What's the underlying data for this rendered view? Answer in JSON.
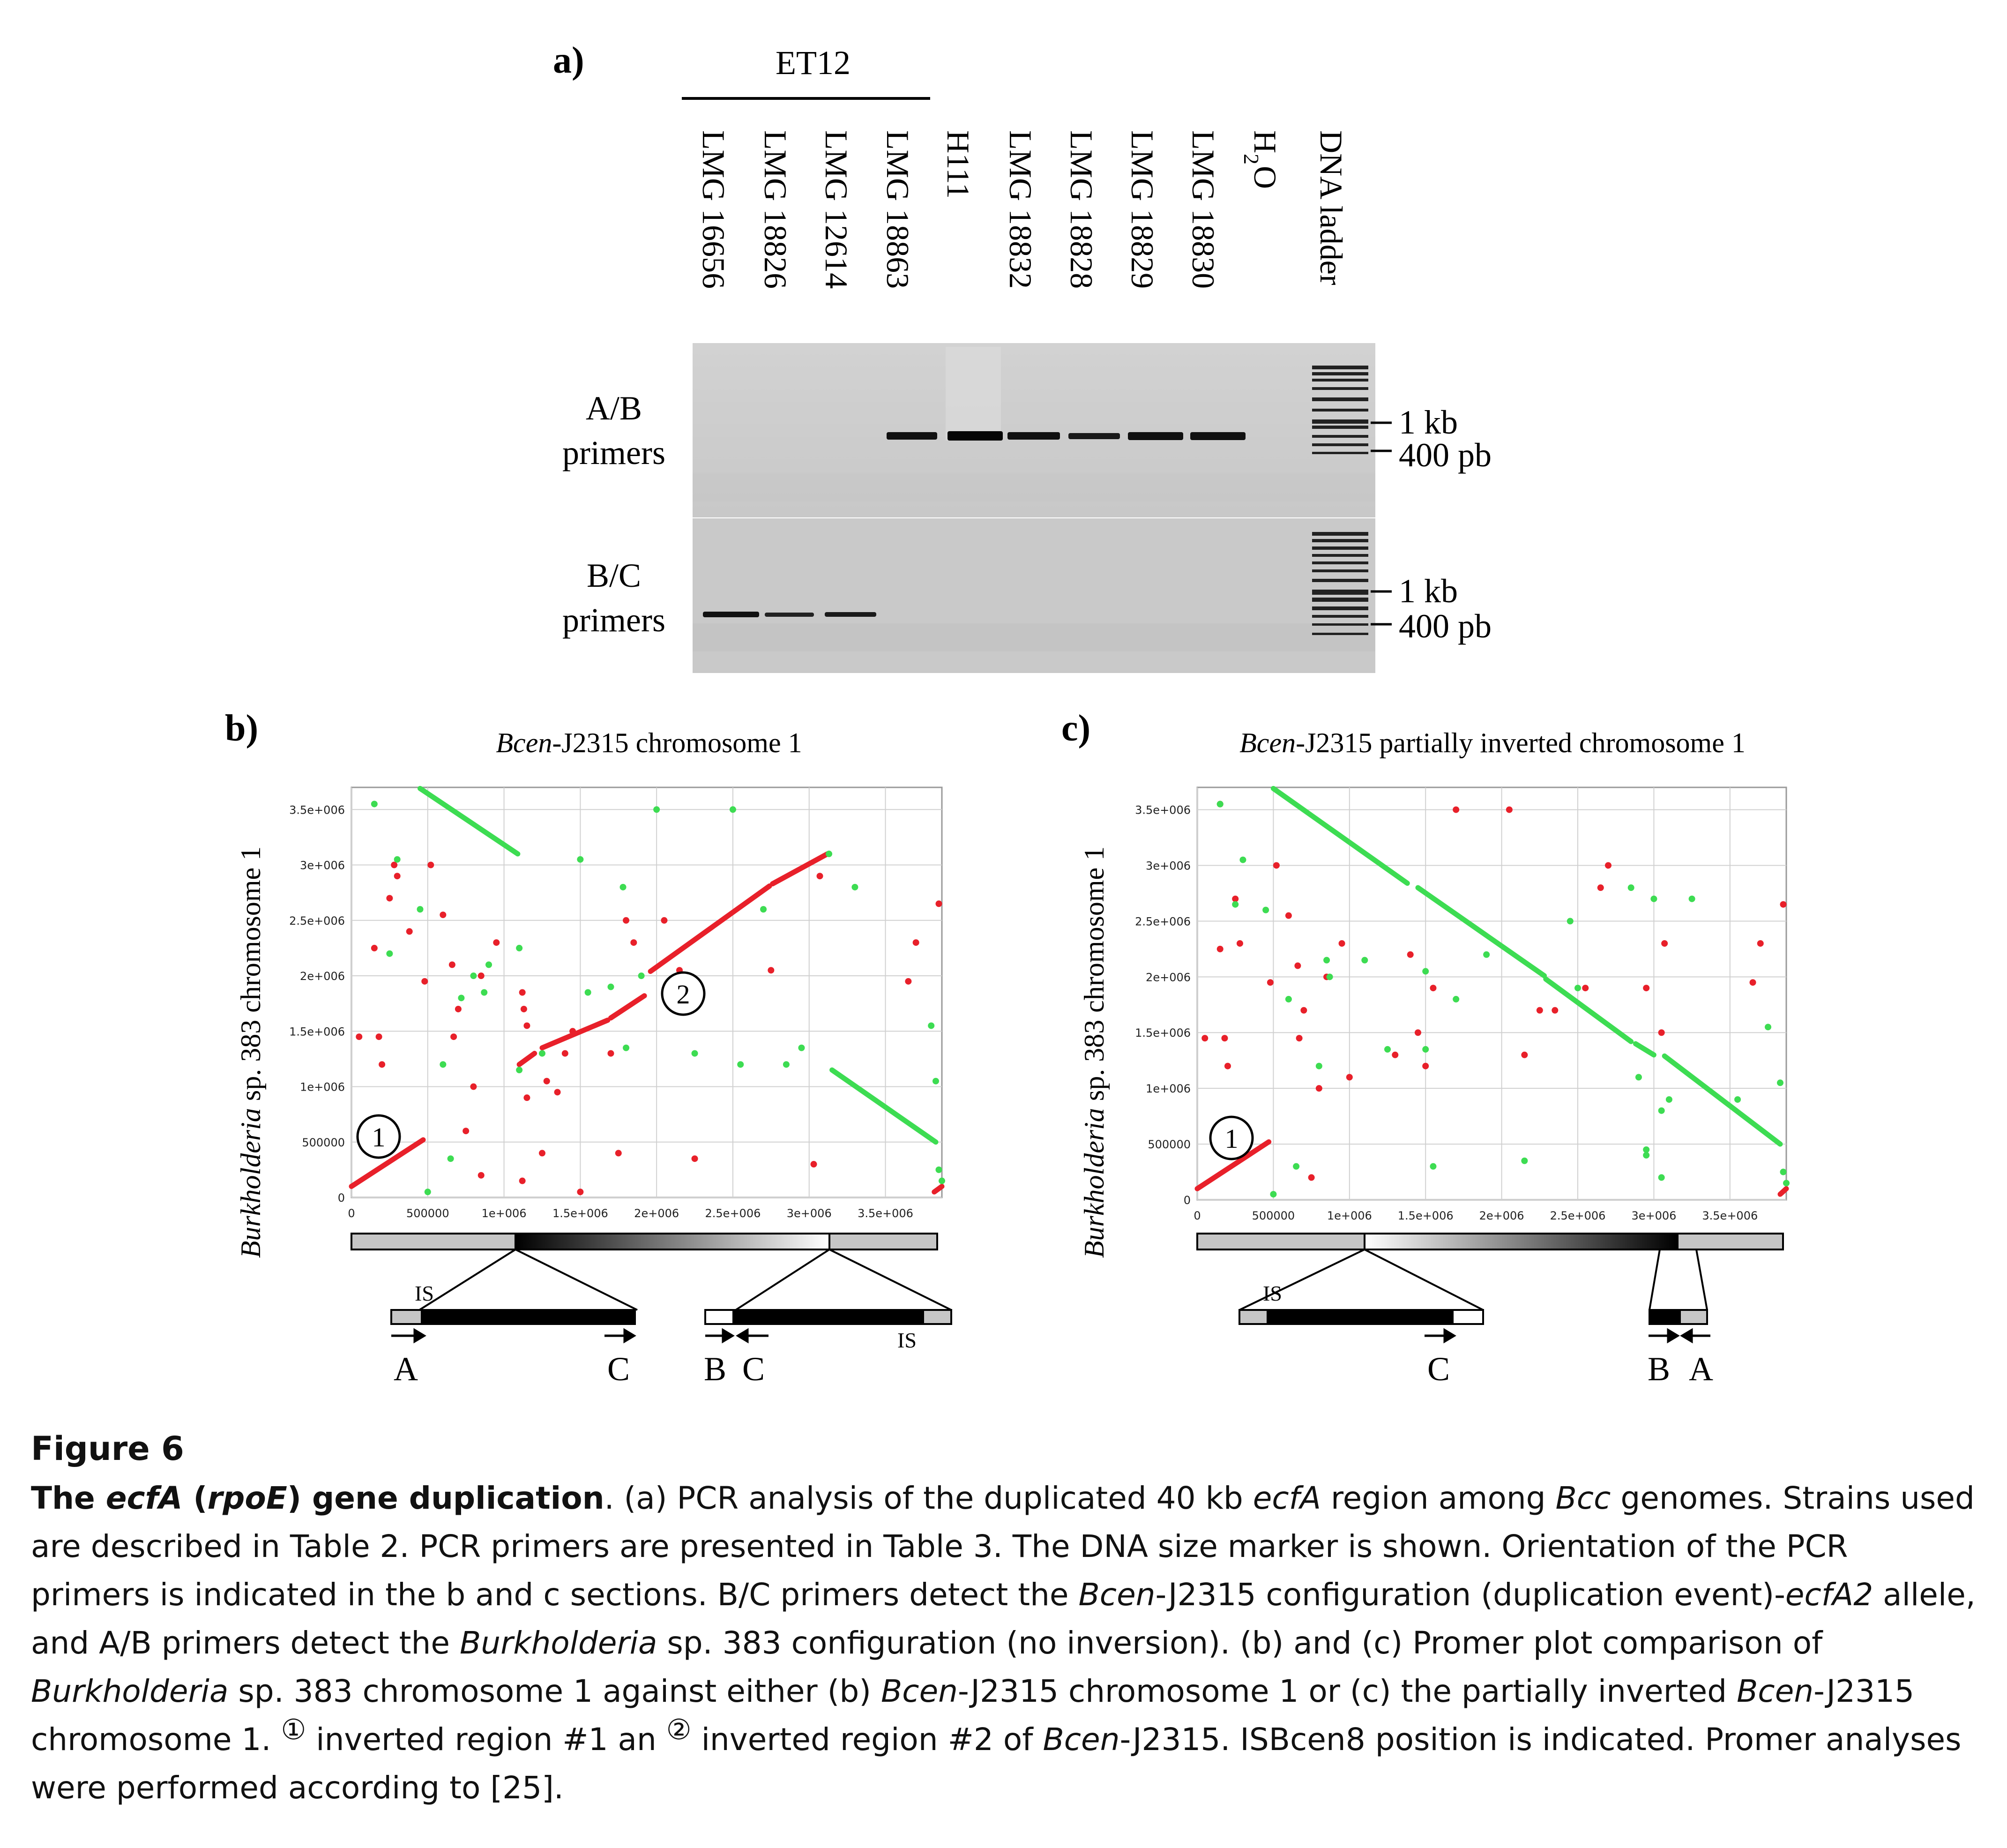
{
  "panel_a": {
    "label": "a)",
    "group_label": "ET12",
    "lanes": [
      "LMG 16656",
      "LMG 18826",
      "LMG 12614",
      "LMG 18863",
      "H111",
      "LMG 18832",
      "LMG 18828",
      "LMG 18829",
      "LMG 18830",
      "H",
      "DNA ladder"
    ],
    "h2o_sub": "2",
    "h2o_O": "O",
    "row1_label_1": "A/B",
    "row1_label_2": "primers",
    "row2_label_1": "B/C",
    "row2_label_2": "primers",
    "marker_1kb": "1 kb",
    "marker_400": "400 pb",
    "row1_bands": [
      0,
      0,
      0,
      1,
      1,
      1,
      1,
      1,
      1,
      0
    ],
    "row2_bands": [
      1,
      1,
      1,
      0,
      0,
      0,
      0,
      0,
      0,
      0
    ]
  },
  "panel_b": {
    "label": "b)",
    "title_italic": "Bcen",
    "title_rest": "-J2315 chromosome 1",
    "ylabel_italic": "Burkholderia",
    "ylabel_rest": " sp. 383 chromosome 1",
    "marker_1": "1",
    "marker_2": "2",
    "is_left": "IS",
    "is_right": "IS",
    "arrow_labels": [
      "A",
      "C",
      "B",
      "C"
    ]
  },
  "panel_c": {
    "label": "c)",
    "title_italic": "Bcen",
    "title_rest": "-J2315 partially inverted chromosome 1",
    "ylabel_italic": "Burkholderia",
    "ylabel_rest": " sp. 383 chromosome 1",
    "marker_1": "1",
    "is_left": "IS",
    "arrow_labels": [
      "C",
      "B",
      "A"
    ]
  },
  "chart_data": [
    {
      "type": "scatter",
      "title": "Bcen-J2315 chromosome 1",
      "ylabel": "Burkholderia sp. 383 chromosome 1",
      "xlim": [
        0,
        3870000
      ],
      "ylim": [
        0,
        3700000
      ],
      "x_ticks": [
        "0",
        "500000",
        "1e+006",
        "1.5e+006",
        "2e+006",
        "2.5e+006",
        "3e+006",
        "3.5e+006"
      ],
      "y_ticks": [
        "0",
        "500000",
        "1e+006",
        "1.5e+006",
        "2e+006",
        "2.5e+006",
        "3e+006",
        "3.5e+006"
      ],
      "grid": true,
      "segments": [
        {
          "color": "red",
          "x": [
            0,
            470000
          ],
          "y": [
            100000,
            520000
          ]
        },
        {
          "color": "red",
          "x": [
            1100000,
            1200000
          ],
          "y": [
            1200000,
            1300000
          ]
        },
        {
          "color": "red",
          "x": [
            1250000,
            1680000
          ],
          "y": [
            1350000,
            1600000
          ]
        },
        {
          "color": "red",
          "x": [
            1700000,
            1920000
          ],
          "y": [
            1620000,
            1820000
          ]
        },
        {
          "color": "red",
          "x": [
            1960000,
            2740000
          ],
          "y": [
            2040000,
            2810000
          ]
        },
        {
          "color": "red",
          "x": [
            2760000,
            3120000
          ],
          "y": [
            2830000,
            3100000
          ]
        },
        {
          "color": "red",
          "x": [
            3820000,
            3870000
          ],
          "y": [
            50000,
            100000
          ]
        },
        {
          "color": "green",
          "x": [
            450000,
            1090000
          ],
          "y": [
            3690000,
            3100000
          ]
        },
        {
          "color": "green",
          "x": [
            3150000,
            3830000
          ],
          "y": [
            1150000,
            500000
          ]
        }
      ],
      "red_points": [
        [
          50000,
          1450000
        ],
        [
          150000,
          2250000
        ],
        [
          180000,
          1450000
        ],
        [
          200000,
          1200000
        ],
        [
          250000,
          2700000
        ],
        [
          280000,
          3000000
        ],
        [
          300000,
          2900000
        ],
        [
          380000,
          2400000
        ],
        [
          480000,
          1950000
        ],
        [
          520000,
          3000000
        ],
        [
          600000,
          2550000
        ],
        [
          660000,
          2100000
        ],
        [
          670000,
          1450000
        ],
        [
          700000,
          1700000
        ],
        [
          750000,
          600000
        ],
        [
          800000,
          1000000
        ],
        [
          850000,
          2000000
        ],
        [
          850000,
          200000
        ],
        [
          950000,
          2300000
        ],
        [
          1130000,
          1700000
        ],
        [
          1150000,
          1550000
        ],
        [
          1120000,
          1850000
        ],
        [
          1120000,
          150000
        ],
        [
          1150000,
          900000
        ],
        [
          1250000,
          400000
        ],
        [
          1280000,
          1050000
        ],
        [
          1350000,
          950000
        ],
        [
          1400000,
          1300000
        ],
        [
          1450000,
          1500000
        ],
        [
          1700000,
          1300000
        ],
        [
          1750000,
          400000
        ],
        [
          1800000,
          2500000
        ],
        [
          1850000,
          2300000
        ],
        [
          2050000,
          2500000
        ],
        [
          2150000,
          2050000
        ],
        [
          2250000,
          350000
        ],
        [
          2750000,
          2050000
        ],
        [
          3030000,
          300000
        ],
        [
          3070000,
          2900000
        ],
        [
          3650000,
          1950000
        ],
        [
          3700000,
          2300000
        ],
        [
          3850000,
          2650000
        ],
        [
          1500000,
          50000
        ]
      ],
      "green_points": [
        [
          150000,
          3550000
        ],
        [
          300000,
          3050000
        ],
        [
          250000,
          2200000
        ],
        [
          450000,
          2600000
        ],
        [
          500000,
          50000
        ],
        [
          600000,
          1200000
        ],
        [
          650000,
          350000
        ],
        [
          720000,
          1800000
        ],
        [
          800000,
          2000000
        ],
        [
          870000,
          1850000
        ],
        [
          900000,
          2100000
        ],
        [
          1100000,
          2250000
        ],
        [
          1100000,
          1150000
        ],
        [
          1250000,
          1300000
        ],
        [
          1500000,
          3050000
        ],
        [
          1550000,
          1850000
        ],
        [
          1700000,
          1900000
        ],
        [
          1780000,
          2800000
        ],
        [
          1800000,
          1350000
        ],
        [
          1900000,
          2000000
        ],
        [
          2000000,
          3500000
        ],
        [
          2250000,
          1300000
        ],
        [
          2500000,
          3500000
        ],
        [
          2550000,
          1200000
        ],
        [
          2700000,
          2600000
        ],
        [
          2850000,
          1200000
        ],
        [
          2950000,
          1350000
        ],
        [
          3130000,
          3100000
        ],
        [
          3300000,
          2800000
        ],
        [
          3800000,
          1550000
        ],
        [
          3830000,
          1050000
        ],
        [
          3850000,
          250000
        ],
        [
          3870000,
          150000
        ]
      ]
    },
    {
      "type": "scatter",
      "title": "Bcen-J2315 partially inverted chromosome 1",
      "ylabel": "Burkholderia sp. 383 chromosome 1",
      "xlim": [
        0,
        3870000
      ],
      "ylim": [
        0,
        3700000
      ],
      "x_ticks": [
        "0",
        "500000",
        "1e+006",
        "1.5e+006",
        "2e+006",
        "2.5e+006",
        "3e+006",
        "3.5e+006"
      ],
      "y_ticks": [
        "0",
        "500000",
        "1e+006",
        "1.5e+006",
        "2e+006",
        "2.5e+006",
        "3e+006",
        "3.5e+006"
      ],
      "grid": true,
      "segments": [
        {
          "color": "red",
          "x": [
            0,
            470000
          ],
          "y": [
            100000,
            520000
          ]
        },
        {
          "color": "red",
          "x": [
            3830000,
            3870000
          ],
          "y": [
            50000,
            100000
          ]
        },
        {
          "color": "green",
          "x": [
            500000,
            1380000
          ],
          "y": [
            3690000,
            2840000
          ]
        },
        {
          "color": "green",
          "x": [
            1450000,
            2280000
          ],
          "y": [
            2800000,
            2010000
          ]
        },
        {
          "color": "green",
          "x": [
            2290000,
            2850000
          ],
          "y": [
            1980000,
            1420000
          ]
        },
        {
          "color": "green",
          "x": [
            2880000,
            3000000
          ],
          "y": [
            1400000,
            1300000
          ]
        },
        {
          "color": "green",
          "x": [
            3070000,
            3830000
          ],
          "y": [
            1290000,
            500000
          ]
        }
      ],
      "red_points": [
        [
          50000,
          1450000
        ],
        [
          150000,
          2250000
        ],
        [
          150000,
          3550000
        ],
        [
          180000,
          1450000
        ],
        [
          200000,
          1200000
        ],
        [
          250000,
          2700000
        ],
        [
          280000,
          2300000
        ],
        [
          480000,
          1950000
        ],
        [
          520000,
          3000000
        ],
        [
          600000,
          2550000
        ],
        [
          660000,
          2100000
        ],
        [
          670000,
          1450000
        ],
        [
          700000,
          1700000
        ],
        [
          750000,
          200000
        ],
        [
          800000,
          1000000
        ],
        [
          850000,
          2000000
        ],
        [
          950000,
          2300000
        ],
        [
          1000000,
          1100000
        ],
        [
          1300000,
          1300000
        ],
        [
          1400000,
          2200000
        ],
        [
          1450000,
          1500000
        ],
        [
          1500000,
          1200000
        ],
        [
          1550000,
          1900000
        ],
        [
          1700000,
          3500000
        ],
        [
          2050000,
          3500000
        ],
        [
          2150000,
          1300000
        ],
        [
          2250000,
          1700000
        ],
        [
          2350000,
          1700000
        ],
        [
          2550000,
          1900000
        ],
        [
          2650000,
          2800000
        ],
        [
          2700000,
          3000000
        ],
        [
          2950000,
          1900000
        ],
        [
          3050000,
          1500000
        ],
        [
          3070000,
          2300000
        ],
        [
          3650000,
          1950000
        ],
        [
          3700000,
          2300000
        ],
        [
          3850000,
          2650000
        ]
      ],
      "green_points": [
        [
          150000,
          3550000
        ],
        [
          300000,
          3050000
        ],
        [
          250000,
          2650000
        ],
        [
          450000,
          2600000
        ],
        [
          500000,
          50000
        ],
        [
          600000,
          1800000
        ],
        [
          650000,
          300000
        ],
        [
          800000,
          1200000
        ],
        [
          850000,
          2150000
        ],
        [
          870000,
          2000000
        ],
        [
          1100000,
          2150000
        ],
        [
          1250000,
          1350000
        ],
        [
          1500000,
          1350000
        ],
        [
          1500000,
          2050000
        ],
        [
          1550000,
          300000
        ],
        [
          1700000,
          1800000
        ],
        [
          1900000,
          2200000
        ],
        [
          2150000,
          350000
        ],
        [
          2450000,
          2500000
        ],
        [
          2500000,
          1900000
        ],
        [
          2850000,
          2800000
        ],
        [
          2900000,
          1100000
        ],
        [
          2950000,
          400000
        ],
        [
          2950000,
          450000
        ],
        [
          3000000,
          2700000
        ],
        [
          3050000,
          800000
        ],
        [
          3050000,
          200000
        ],
        [
          3100000,
          900000
        ],
        [
          3250000,
          2700000
        ],
        [
          3550000,
          900000
        ],
        [
          3750000,
          1550000
        ],
        [
          3830000,
          1050000
        ],
        [
          3850000,
          250000
        ],
        [
          3870000,
          150000
        ]
      ]
    }
  ],
  "caption": {
    "figure_label": "Figure 6",
    "t1": "The ",
    "t2": "ecfA",
    "t3": " (",
    "t4": "rpoE",
    "t5": ") gene duplication",
    "s1": ". (a) PCR analysis of the duplicated 40 kb ",
    "s2": "ecfA",
    "s3": " region among ",
    "s4": "Bcc",
    "s5": " genomes. Strains used are described in Table 2. PCR primers are presented in Table 3. The DNA size marker is shown. Orientation of the PCR primers is indicated in the b and c sections. B/C primers detect the ",
    "s6": "Bcen",
    "s7": "-J2315 configuration (duplication event)-",
    "s8": "ecfA2",
    "s9": " allele, and A/B primers detect the ",
    "s10": "Burkholderia",
    "s11": " sp. 383 configuration (no inversion). (b) and (c) Promer plot comparison of ",
    "s12": "Burkholderia",
    "s13": " sp. 383 chromosome 1 against either (b) ",
    "s14": "Bcen",
    "s15": "-J2315 chromosome 1 or (c) the partially inverted ",
    "s16": "Bcen",
    "s17": "-J2315 chromosome 1. ",
    "c1": "①",
    "s18": " inverted region #1 an ",
    "c2": "②",
    "s19": " inverted region #2 of ",
    "s20": "Bcen",
    "s21": "-J2315. ISBcen8 position is indicated. Promer analyses were performed according to [25]."
  }
}
